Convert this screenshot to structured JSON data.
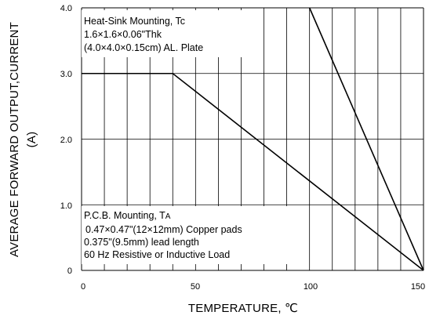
{
  "chart_data": {
    "type": "line",
    "xlabel": "TEMPERATURE, ℃",
    "ylabel": "AVERAGE FORWARD OUTPUT,CURRENT",
    "ylabel_unit": "(A)",
    "xlim": [
      0,
      150
    ],
    "ylim": [
      0,
      4.0
    ],
    "x_ticks": [
      "0",
      "50",
      "100",
      "150"
    ],
    "y_ticks": [
      "0",
      "1.0",
      "2.0",
      "3.0",
      "4.0"
    ],
    "grid": true,
    "series": [
      {
        "x": [
          0,
          40,
          150
        ],
        "y": [
          3.0,
          3.0,
          0
        ]
      },
      {
        "x": [
          100,
          150
        ],
        "y": [
          4.0,
          0
        ]
      }
    ],
    "annotations": {
      "heat_sink": {
        "line1": "Heat-Sink Mounting, Tc",
        "line2": "1.6×1.6×0.06\"Thk",
        "line3": "(4.0×4.0×0.15cm) AL. Plate"
      },
      "pcb": {
        "line1_main": "P.C.B. Mounting, T",
        "line1_sub": "A",
        "line2": "0.47×0.47\"(12×12mm) Copper pads",
        "line3": "0.375\"(9.5mm) lead length",
        "line4": "60 Hz Resistive or Inductive Load"
      }
    },
    "colors": {
      "line": "#000000",
      "grid": "#000000",
      "background": "#ffffff"
    }
  }
}
